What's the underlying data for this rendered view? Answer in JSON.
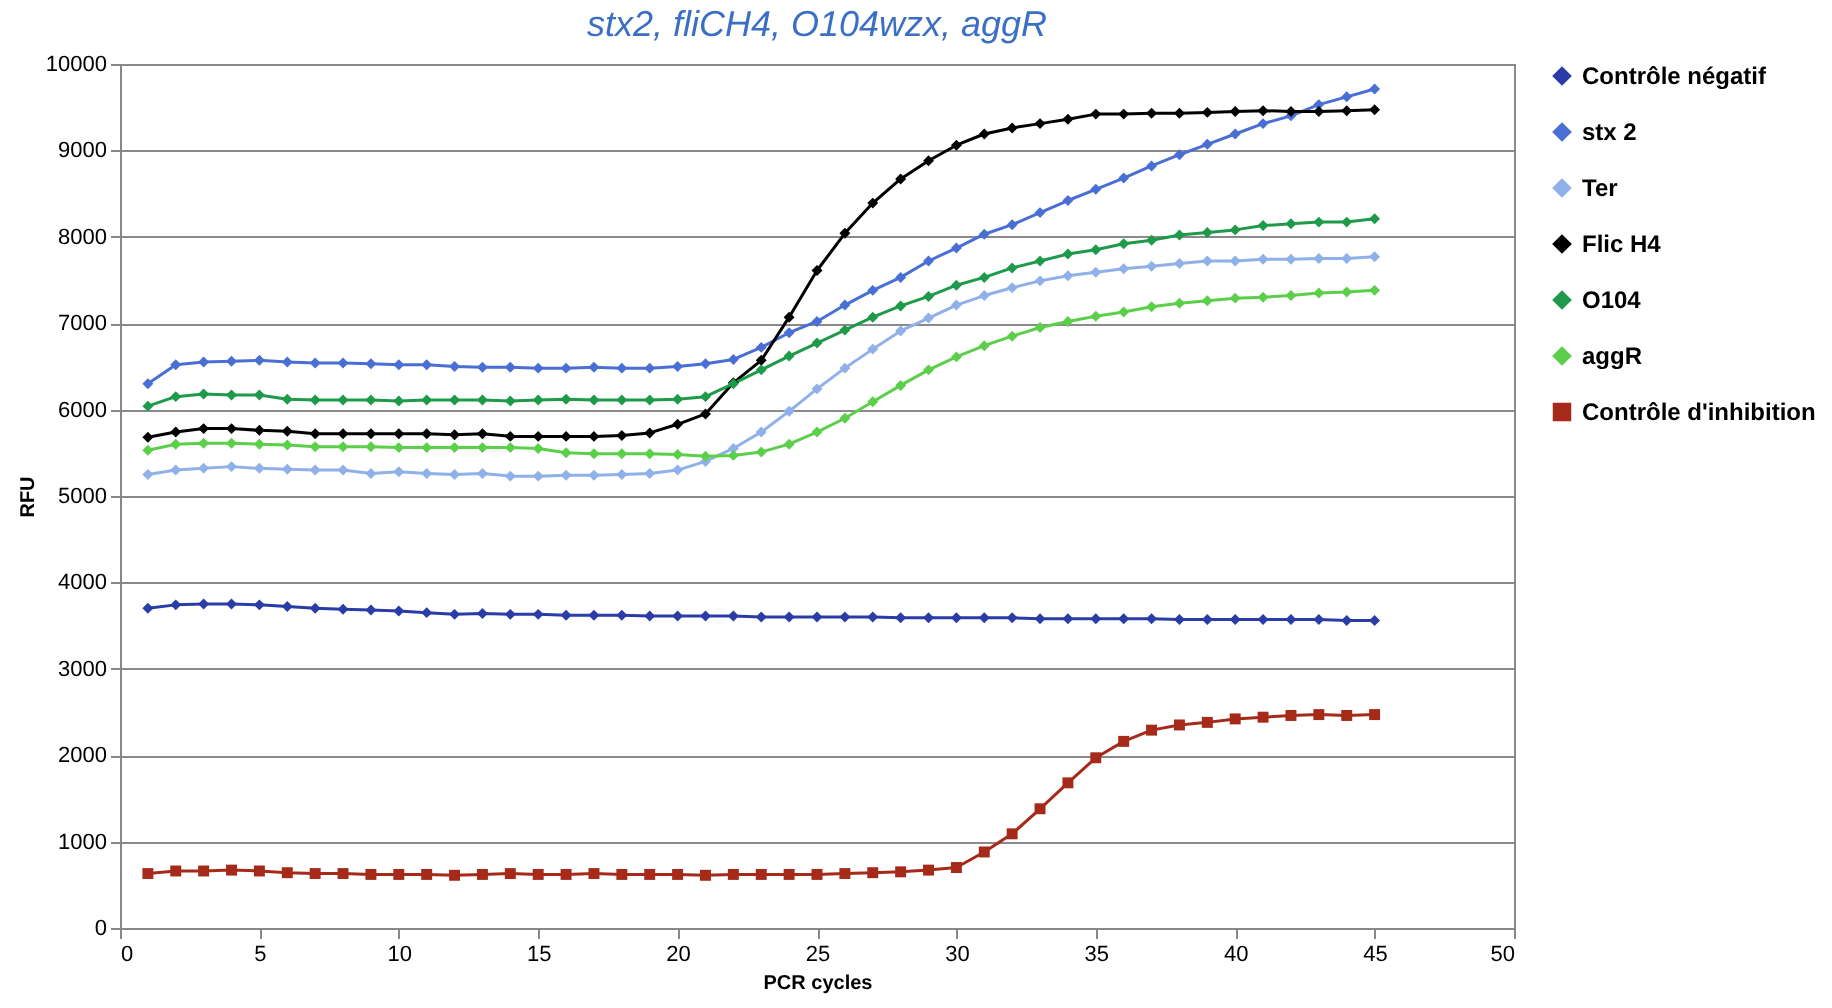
{
  "chart_data": {
    "type": "line",
    "title": "stx2, fliCH4, O104wzx, aggR",
    "xlabel": "PCR cycles",
    "ylabel": "RFU",
    "x": [
      1,
      2,
      3,
      4,
      5,
      6,
      7,
      8,
      9,
      10,
      11,
      12,
      13,
      14,
      15,
      16,
      17,
      18,
      19,
      20,
      21,
      22,
      23,
      24,
      25,
      26,
      27,
      28,
      29,
      30,
      31,
      32,
      33,
      34,
      35,
      36,
      37,
      38,
      39,
      40,
      41,
      42,
      43,
      44,
      45
    ],
    "xlim": [
      0,
      50
    ],
    "xticks": [
      0,
      5,
      10,
      15,
      20,
      25,
      30,
      35,
      40,
      45,
      50
    ],
    "ylim": [
      0,
      10000
    ],
    "yticks": [
      0,
      1000,
      2000,
      3000,
      4000,
      5000,
      6000,
      7000,
      8000,
      9000,
      10000
    ],
    "grid": "y",
    "legend": "right",
    "marker": "diamond",
    "series": [
      {
        "name": "Contrôle négatif",
        "color": "#2a3ca6",
        "values": [
          3700,
          3740,
          3750,
          3750,
          3740,
          3720,
          3700,
          3690,
          3680,
          3670,
          3650,
          3630,
          3640,
          3630,
          3630,
          3620,
          3620,
          3620,
          3610,
          3610,
          3610,
          3610,
          3600,
          3600,
          3600,
          3600,
          3600,
          3590,
          3590,
          3590,
          3590,
          3590,
          3580,
          3580,
          3580,
          3580,
          3580,
          3570,
          3570,
          3570,
          3570,
          3570,
          3570,
          3560,
          3560
        ]
      },
      {
        "name": "stx 2",
        "color": "#4a6fd4",
        "values": [
          6300,
          6520,
          6550,
          6560,
          6570,
          6550,
          6540,
          6540,
          6530,
          6520,
          6520,
          6500,
          6490,
          6490,
          6480,
          6480,
          6490,
          6480,
          6480,
          6500,
          6530,
          6580,
          6720,
          6890,
          7020,
          7210,
          7380,
          7530,
          7720,
          7870,
          8030,
          8140,
          8280,
          8420,
          8550,
          8680,
          8820,
          8950,
          9070,
          9190,
          9310,
          9400,
          9530,
          9620,
          9710
        ]
      },
      {
        "name": "Ter",
        "color": "#8fb0e8",
        "values": [
          5250,
          5300,
          5320,
          5340,
          5320,
          5310,
          5300,
          5300,
          5260,
          5280,
          5260,
          5250,
          5260,
          5230,
          5230,
          5240,
          5240,
          5250,
          5260,
          5300,
          5400,
          5550,
          5740,
          5980,
          6240,
          6480,
          6700,
          6910,
          7060,
          7210,
          7320,
          7410,
          7490,
          7550,
          7590,
          7630,
          7660,
          7690,
          7720,
          7720,
          7740,
          7740,
          7750,
          7750,
          7770
        ]
      },
      {
        "name": "Flic H4",
        "color": "#000000",
        "values": [
          5680,
          5740,
          5780,
          5780,
          5760,
          5750,
          5720,
          5720,
          5720,
          5720,
          5720,
          5710,
          5720,
          5690,
          5690,
          5690,
          5690,
          5700,
          5730,
          5830,
          5950,
          6310,
          6570,
          7070,
          7610,
          8040,
          8390,
          8670,
          8880,
          9060,
          9190,
          9260,
          9310,
          9360,
          9420,
          9420,
          9430,
          9430,
          9440,
          9450,
          9460,
          9450,
          9450,
          9460,
          9470
        ]
      },
      {
        "name": "O104",
        "color": "#1e9a4a",
        "values": [
          6040,
          6150,
          6180,
          6170,
          6170,
          6120,
          6110,
          6110,
          6110,
          6100,
          6110,
          6110,
          6110,
          6100,
          6110,
          6120,
          6110,
          6110,
          6110,
          6120,
          6150,
          6300,
          6460,
          6620,
          6770,
          6920,
          7070,
          7200,
          7310,
          7440,
          7530,
          7640,
          7720,
          7800,
          7850,
          7920,
          7960,
          8020,
          8050,
          8080,
          8130,
          8150,
          8170,
          8170,
          8210
        ]
      },
      {
        "name": "aggR",
        "color": "#5ccf4a",
        "values": [
          5530,
          5600,
          5610,
          5610,
          5600,
          5590,
          5570,
          5570,
          5570,
          5560,
          5560,
          5560,
          5560,
          5560,
          5550,
          5500,
          5490,
          5490,
          5490,
          5480,
          5460,
          5470,
          5510,
          5600,
          5740,
          5900,
          6090,
          6280,
          6460,
          6610,
          6740,
          6850,
          6950,
          7020,
          7080,
          7130,
          7190,
          7230,
          7260,
          7290,
          7300,
          7320,
          7350,
          7360,
          7380
        ]
      },
      {
        "name": "Contrôle d'inhibition",
        "color": "#a52a1a",
        "marker": "square",
        "values": [
          630,
          660,
          660,
          670,
          660,
          640,
          630,
          630,
          620,
          620,
          620,
          610,
          620,
          630,
          620,
          620,
          630,
          620,
          620,
          620,
          610,
          620,
          620,
          620,
          620,
          630,
          640,
          650,
          670,
          700,
          880,
          1090,
          1380,
          1680,
          1970,
          2160,
          2290,
          2350,
          2380,
          2420,
          2440,
          2460,
          2470,
          2460,
          2470
        ]
      }
    ]
  }
}
